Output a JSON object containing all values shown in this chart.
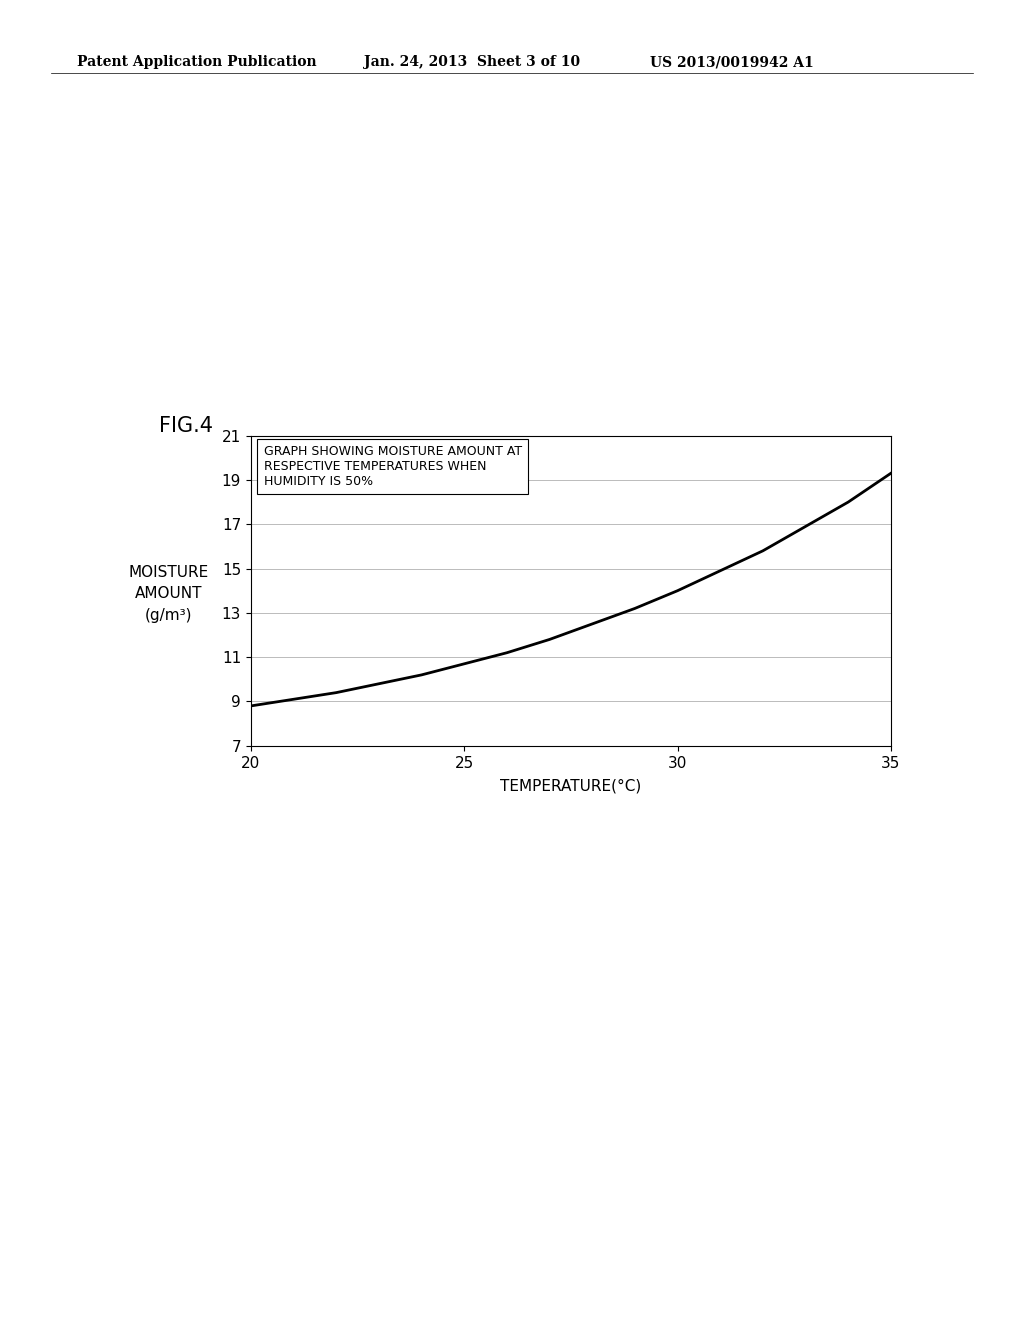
{
  "fig_label": "FIG.4",
  "header_left": "Patent Application Publication",
  "header_mid": "Jan. 24, 2013  Sheet 3 of 10",
  "header_right": "US 2013/0019942 A1",
  "x_data": [
    20,
    21,
    22,
    23,
    24,
    25,
    26,
    27,
    28,
    29,
    30,
    31,
    32,
    33,
    34,
    35
  ],
  "y_data": [
    8.8,
    9.1,
    9.4,
    9.8,
    10.2,
    10.7,
    11.2,
    11.8,
    12.5,
    13.2,
    14.0,
    14.9,
    15.8,
    16.9,
    18.0,
    19.3
  ],
  "xlabel": "TEMPERATURE(°C)",
  "ylabel_line1": "MOISTURE",
  "ylabel_line2": "AMOUNT",
  "ylabel_line3": "(g/m³)",
  "xlim": [
    20,
    35
  ],
  "ylim": [
    7,
    21
  ],
  "xticks": [
    20,
    25,
    30,
    35
  ],
  "yticks": [
    7,
    9,
    11,
    13,
    15,
    17,
    19,
    21
  ],
  "annotation_text": "GRAPH SHOWING MOISTURE AMOUNT AT\nRESPECTIVE TEMPERATURES WHEN\nHUMIDITY IS 50%",
  "line_color": "#000000",
  "background_color": "#ffffff",
  "grid_color": "#bbbbbb"
}
